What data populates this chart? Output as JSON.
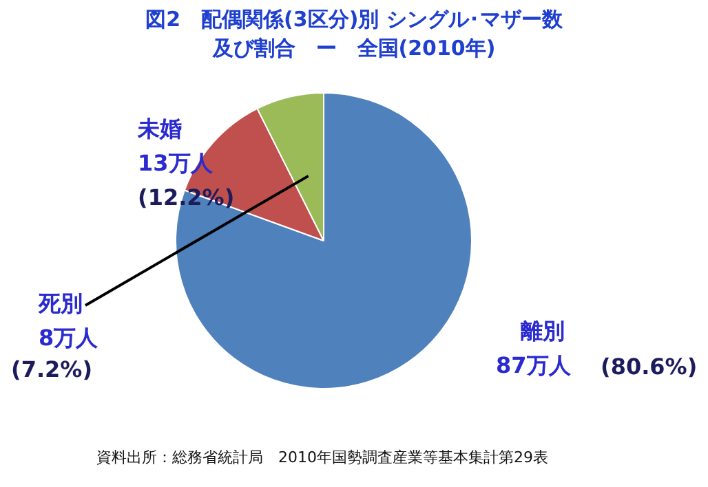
{
  "chart_data": {
    "type": "pie",
    "title": "図2　配偶関係(3区分)別 シングル･マザー数",
    "subtitle": "及び割合　ー　全国(2010年)",
    "categories": [
      "離別",
      "未婚",
      "死別"
    ],
    "values": [
      87,
      13,
      8
    ],
    "colors": [
      "#4f81bd",
      "#c0504d",
      "#9bbb59"
    ],
    "value_labels": [
      "87万人",
      "13万人",
      "8万人"
    ],
    "annotations": [
      "(80.6%)",
      "(12.2%)",
      "(7.2%)",
      "資料出所：総務省統計局　2010年国勢調査産業等基本集計第29表"
    ],
    "legend": false
  }
}
